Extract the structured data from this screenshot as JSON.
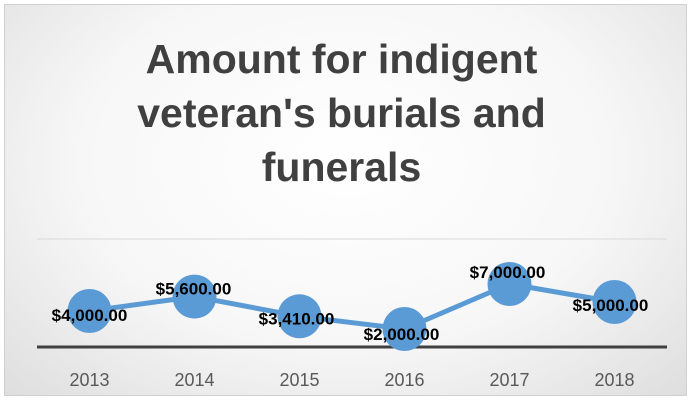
{
  "chart_data": {
    "type": "line",
    "title_lines": [
      "Amount for indigent",
      "veteran's burials and",
      "funerals"
    ],
    "categories": [
      "2013",
      "2014",
      "2015",
      "2016",
      "2017",
      "2018"
    ],
    "series": [
      {
        "values": [
          4000,
          5600,
          3410,
          2000,
          7000,
          5000
        ],
        "labels": [
          "$4,000.00",
          "$5,600.00",
          "$3,410.00",
          "$2,000.00",
          "$7,000.00",
          "$5,000.00"
        ]
      }
    ],
    "ylim": [
      -2000,
      12000
    ],
    "grid": true,
    "legend": "none",
    "colors": {
      "line": "#5B9BD5",
      "marker": "#5B9BD5",
      "axis": "#404040",
      "grid": "#d9d9d9"
    }
  }
}
